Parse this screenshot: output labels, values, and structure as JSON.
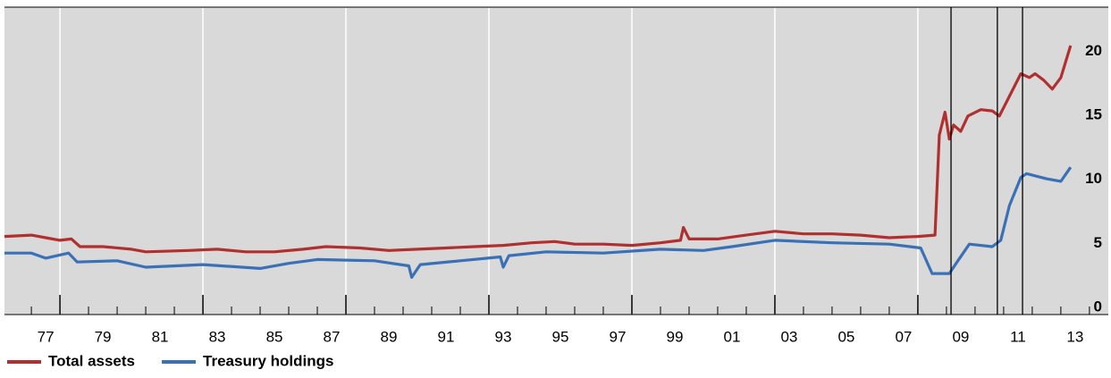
{
  "chart_data": {
    "type": "line",
    "xlim": [
      1976.06,
      2014.66
    ],
    "ylim": [
      0,
      24
    ],
    "yticks": [
      0,
      5,
      10,
      15,
      20
    ],
    "xticks": [
      {
        "value": 1977.5,
        "label": "77"
      },
      {
        "value": 1979.5,
        "label": "79"
      },
      {
        "value": 1981.5,
        "label": "81"
      },
      {
        "value": 1983.5,
        "label": "83"
      },
      {
        "value": 1985.5,
        "label": "85"
      },
      {
        "value": 1987.5,
        "label": "87"
      },
      {
        "value": 1989.5,
        "label": "89"
      },
      {
        "value": 1991.5,
        "label": "91"
      },
      {
        "value": 1993.5,
        "label": "93"
      },
      {
        "value": 1995.5,
        "label": "95"
      },
      {
        "value": 1997.5,
        "label": "97"
      },
      {
        "value": 1999.5,
        "label": "99"
      },
      {
        "value": 2001.5,
        "label": "01"
      },
      {
        "value": 2003.5,
        "label": "03"
      },
      {
        "value": 2005.5,
        "label": "05"
      },
      {
        "value": 2007.5,
        "label": "07"
      },
      {
        "value": 2009.5,
        "label": "09"
      },
      {
        "value": 2011.5,
        "label": "11"
      },
      {
        "value": 2013.5,
        "label": "13"
      }
    ],
    "xgrid": [
      1978,
      1983,
      1988,
      1993,
      1998,
      2003,
      2008
    ],
    "vlines": [
      2009.16,
      2010.78,
      2011.66
    ],
    "series": [
      {
        "name": "Total assets",
        "color": "#b03030",
        "x": [
          1976.06,
          1977.0,
          1977.5,
          1978.0,
          1978.4,
          1978.7,
          1979.5,
          1980.5,
          1981.0,
          1982.5,
          1983.5,
          1984.5,
          1985.5,
          1986.5,
          1987.3,
          1988.5,
          1989.5,
          1990.5,
          1991.5,
          1992.5,
          1993.5,
          1994.5,
          1995.3,
          1996.0,
          1997.0,
          1998.0,
          1999.0,
          1999.7,
          1999.8,
          2000.0,
          2001.0,
          2002.0,
          2003.0,
          2004.0,
          2005.0,
          2006.0,
          2007.0,
          2008.0,
          2008.6,
          2008.75,
          2008.95,
          2009.1,
          2009.25,
          2009.5,
          2009.75,
          2010.2,
          2010.6,
          2010.85,
          2011.1,
          2011.6,
          2011.9,
          2012.1,
          2012.4,
          2012.7,
          2013.0,
          2013.34
        ],
        "values": [
          6.1,
          6.2,
          6.0,
          5.8,
          5.9,
          5.3,
          5.3,
          5.1,
          4.9,
          5.0,
          5.1,
          4.9,
          4.9,
          5.1,
          5.3,
          5.2,
          5.0,
          5.1,
          5.2,
          5.3,
          5.4,
          5.6,
          5.7,
          5.5,
          5.5,
          5.4,
          5.6,
          5.8,
          6.8,
          5.9,
          5.9,
          6.2,
          6.5,
          6.3,
          6.3,
          6.2,
          6.0,
          6.1,
          6.2,
          14.0,
          15.8,
          13.7,
          14.8,
          14.3,
          15.5,
          16.0,
          15.9,
          15.5,
          16.6,
          18.8,
          18.5,
          18.8,
          18.3,
          17.6,
          18.5,
          21.0
        ]
      },
      {
        "name": "Treasury holdings",
        "color": "#3a70b5",
        "x": [
          1976.06,
          1977.0,
          1977.5,
          1978.3,
          1978.6,
          1980.0,
          1981.0,
          1983.0,
          1985.0,
          1986.0,
          1987.0,
          1989.0,
          1990.2,
          1990.3,
          1990.6,
          1992.0,
          1993.4,
          1993.5,
          1993.7,
          1995.0,
          1997.0,
          1999.0,
          2000.5,
          2001.5,
          2003.0,
          2005.0,
          2007.0,
          2008.1,
          2008.5,
          2009.1,
          2009.4,
          2009.8,
          2010.6,
          2010.9,
          2011.2,
          2011.6,
          2011.8,
          2012.5,
          2013.0,
          2013.34
        ],
        "values": [
          4.8,
          4.8,
          4.4,
          4.8,
          4.1,
          4.2,
          3.7,
          3.9,
          3.6,
          4.0,
          4.3,
          4.2,
          3.8,
          2.9,
          3.9,
          4.2,
          4.5,
          3.7,
          4.6,
          4.9,
          4.8,
          5.1,
          5.0,
          5.3,
          5.8,
          5.6,
          5.5,
          5.2,
          3.2,
          3.2,
          4.2,
          5.5,
          5.3,
          5.8,
          8.5,
          10.7,
          11.0,
          10.6,
          10.4,
          11.5
        ]
      }
    ]
  }
}
